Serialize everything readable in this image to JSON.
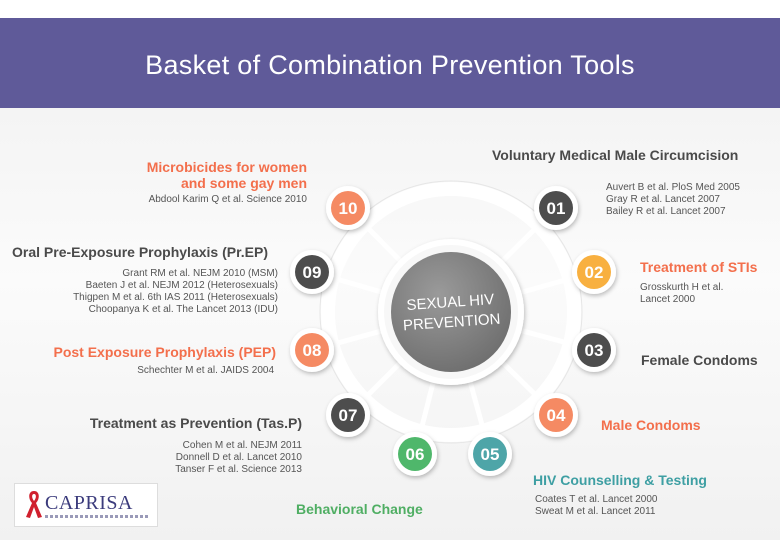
{
  "header": {
    "title": "Basket of Combination Prevention Tools"
  },
  "center": {
    "line1": "SEXUAL HIV",
    "line2": "PREVENTION"
  },
  "colors": {
    "header": "#5f5a99",
    "orange": "#f36f4c",
    "orange_circle": "#f58a63",
    "yellow_circle": "#f8b040",
    "green_circle": "#4fb76b",
    "teal_circle": "#4ea5a8",
    "dark_circle": "#4d4d4d",
    "center_circle": "#7d7d7d"
  },
  "nodes": [
    {
      "number": "01",
      "label": "Voluntary Medical Male Circumcision",
      "refs": [
        "Auvert B et al. PloS Med 2005",
        "Gray R et al. Lancet 2007",
        "Bailey R et al. Lancet 2007"
      ]
    },
    {
      "number": "02",
      "label": "Treatment of STIs",
      "refs": [
        "Grosskurth H et al.",
        "Lancet 2000"
      ]
    },
    {
      "number": "03",
      "label": "Female Condoms",
      "refs": []
    },
    {
      "number": "04",
      "label": "Male Condoms",
      "refs": []
    },
    {
      "number": "05",
      "label": "HIV Counselling & Testing",
      "refs": [
        "Coates T et al. Lancet 2000",
        "Sweat M et al. Lancet 2011"
      ]
    },
    {
      "number": "06",
      "label": "Behavioral Change",
      "refs": []
    },
    {
      "number": "07",
      "label": "Treatment as Prevention (Tas.P)",
      "refs": [
        "Cohen M et al. NEJM 2011",
        "Donnell D et al. Lancet 2010",
        "Tanser F et al. Science 2013"
      ]
    },
    {
      "number": "08",
      "label": "Post Exposure Prophylaxis (PEP)",
      "refs": [
        "Schechter M et al. JAIDS 2004"
      ]
    },
    {
      "number": "09",
      "label": "Oral Pre-Exposure Prophylaxis (Pr.EP)",
      "refs": [
        "Grant RM et al. NEJM 2010 (MSM)",
        "Baeten J et al. NEJM 2012 (Heterosexuals)",
        "Thigpen M et al. 6th IAS 2011 (Heterosexuals)",
        "Choopanya K et al. The Lancet 2013 (IDU)"
      ]
    },
    {
      "number": "10",
      "label_line1": "Microbicides for women",
      "label_line2": "and some gay men",
      "refs": [
        "Abdool Karim Q et al. Science 2010"
      ]
    }
  ],
  "logo": {
    "text": "CAPRISA"
  }
}
